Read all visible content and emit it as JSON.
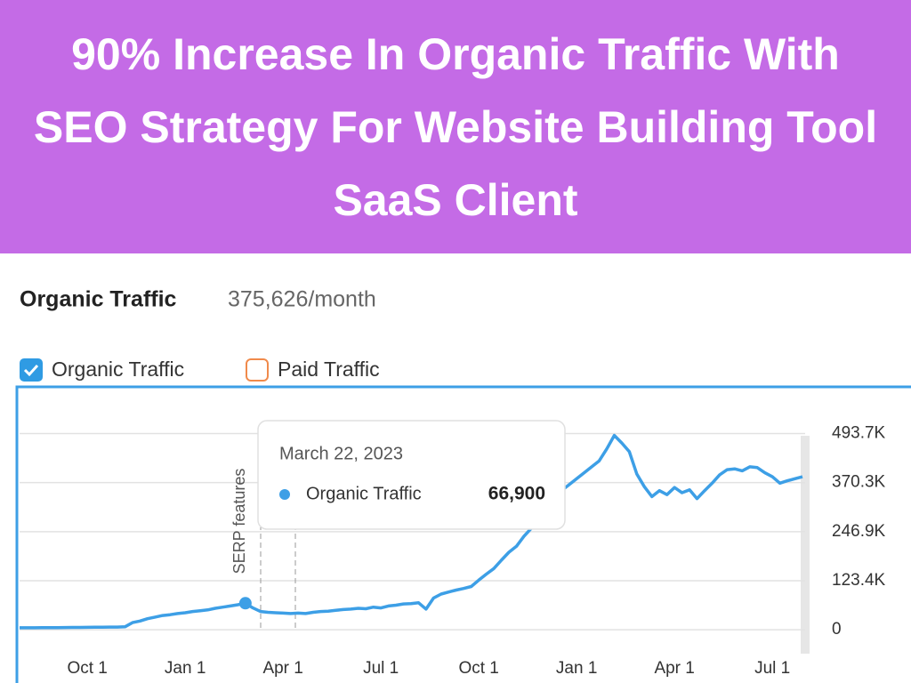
{
  "header": {
    "title": "90% Increase In Organic Traffic With SEO Strategy For Website Building Tool SaaS Client"
  },
  "chart_data": {
    "type": "line",
    "title": "Organic Traffic",
    "subtitle": "375,626/month",
    "legend": [
      {
        "name": "Organic Traffic",
        "checked": true,
        "color": "#2f9be3"
      },
      {
        "name": "Paid Traffic",
        "checked": false,
        "color": "#f08a4b"
      }
    ],
    "annotation": "SERP features",
    "tooltip": {
      "date": "March 22, 2023",
      "label": "Organic Traffic",
      "value": "66,900"
    },
    "categories": [
      null,
      null,
      null,
      null,
      null,
      null,
      null,
      null,
      null,
      "Oct 1",
      null,
      null,
      null,
      null,
      null,
      null,
      null,
      null,
      null,
      null,
      null,
      null,
      "Jan 1",
      null,
      null,
      null,
      null,
      null,
      null,
      null,
      null,
      null,
      null,
      null,
      null,
      "Apr 1",
      null,
      null,
      null,
      null,
      null,
      null,
      null,
      null,
      null,
      null,
      null,
      null,
      "Jul 1",
      null,
      null,
      null,
      null,
      null,
      null,
      null,
      null,
      null,
      null,
      null,
      null,
      "Oct 1",
      null,
      null,
      null,
      null,
      null,
      null,
      null,
      null,
      null,
      null,
      null,
      null,
      "Jan 1",
      null,
      null,
      null,
      null,
      null,
      null,
      null,
      null,
      null,
      null,
      null,
      null,
      "Apr 1",
      null,
      null,
      null,
      null,
      null,
      null,
      null,
      null,
      null,
      null,
      null,
      null,
      "Jul 1",
      null,
      null,
      null,
      null
    ],
    "series": [
      {
        "name": "Organic Traffic",
        "color": "#3d9fe6",
        "values": [
          5000,
          5200,
          5100,
          5400,
          5600,
          5500,
          5800,
          6000,
          6100,
          6300,
          6500,
          6400,
          6800,
          7000,
          7500,
          18000,
          22000,
          28000,
          32000,
          36000,
          38000,
          41000,
          43000,
          46000,
          48000,
          50000,
          54000,
          57000,
          60000,
          63000,
          66900,
          55000,
          46000,
          44000,
          43000,
          42000,
          41000,
          42000,
          41000,
          44000,
          46000,
          47000,
          49000,
          51000,
          52000,
          54000,
          53000,
          57000,
          55000,
          60000,
          62000,
          65000,
          66000,
          68000,
          52000,
          80000,
          90000,
          95000,
          100000,
          104000,
          109000,
          125000,
          140000,
          154000,
          175000,
          195000,
          210000,
          235000,
          256000,
          285000,
          310000,
          335000,
          350000,
          365000,
          380000,
          395000,
          410000,
          425000,
          455000,
          489000,
          470000,
          448000,
          392000,
          360000,
          335000,
          350000,
          340000,
          358000,
          345000,
          352000,
          330000,
          350000,
          369000,
          390000,
          403000,
          405000,
          400000,
          410000,
          408000,
          395000,
          385000,
          369000,
          375000,
          380000,
          385000
        ]
      }
    ],
    "ylim": [
      -60000,
      600000
    ],
    "yticks": [
      0,
      {
        "value": 123400,
        "label": "123.4K"
      },
      {
        "value": 246900,
        "label": "246.9K"
      },
      {
        "value": 370300,
        "label": "370.3K"
      },
      {
        "value": 493700,
        "label": "493.7K"
      }
    ],
    "grid": true
  }
}
